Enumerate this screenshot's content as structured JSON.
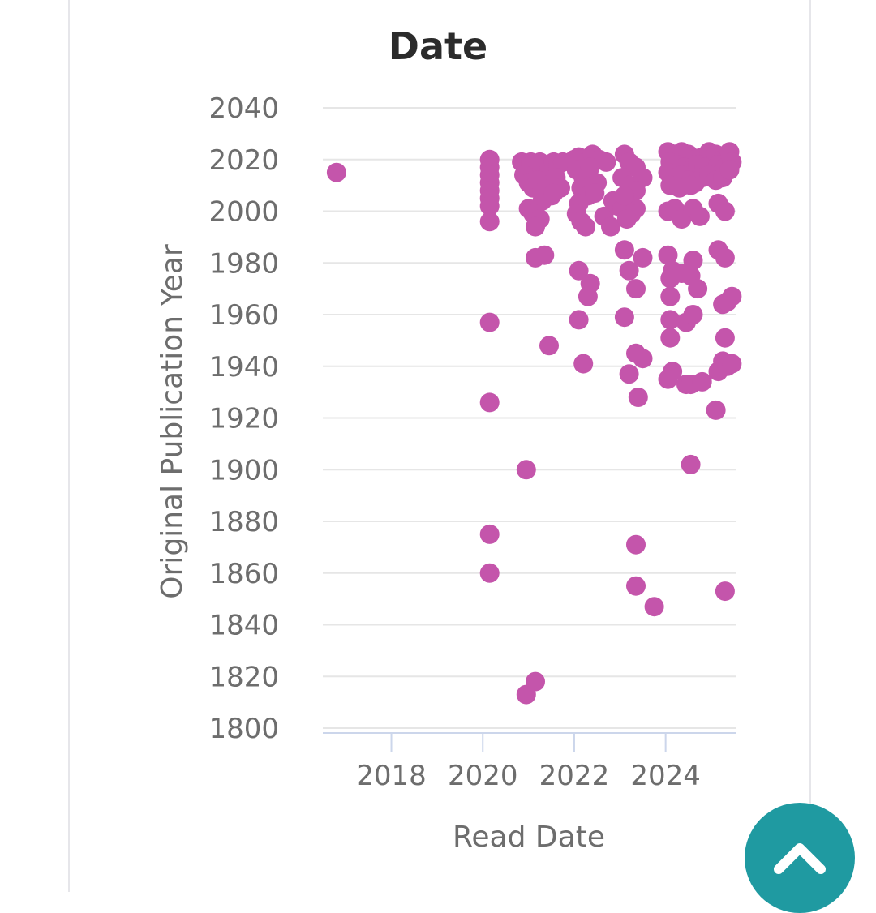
{
  "chart_data": {
    "type": "scatter",
    "title": "Date",
    "xlabel": "Read Date",
    "ylabel": "Original Publication Year",
    "xlim": [
      2016.5,
      2025.55
    ],
    "ylim": [
      1800,
      2040
    ],
    "xticks": [
      "2018",
      "2020",
      "2022",
      "2024"
    ],
    "yticks": [
      "1800",
      "1820",
      "1840",
      "1860",
      "1880",
      "1900",
      "1920",
      "1940",
      "1960",
      "1980",
      "2000",
      "2020",
      "2040"
    ],
    "grid": true,
    "marker_color": "#c455ab",
    "series": [
      {
        "points": [
          [
            2016.8,
            2015
          ],
          [
            2020.15,
            2020
          ],
          [
            2020.15,
            2017
          ],
          [
            2020.15,
            2014
          ],
          [
            2020.15,
            2011
          ],
          [
            2020.15,
            2008
          ],
          [
            2020.15,
            2005
          ],
          [
            2020.15,
            2002
          ],
          [
            2020.15,
            1996
          ],
          [
            2020.15,
            1957
          ],
          [
            2020.15,
            1926
          ],
          [
            2020.15,
            1875
          ],
          [
            2020.15,
            1860
          ],
          [
            2020.85,
            2019
          ],
          [
            2020.95,
            2016
          ],
          [
            2021.05,
            2019
          ],
          [
            2021.15,
            2017
          ],
          [
            2021.25,
            2019
          ],
          [
            2021.35,
            2013
          ],
          [
            2021.45,
            2016
          ],
          [
            2021.55,
            2019
          ],
          [
            2021.65,
            2018
          ],
          [
            2021.75,
            2019
          ],
          [
            2020.9,
            2014
          ],
          [
            2021.0,
            2011
          ],
          [
            2021.1,
            2009
          ],
          [
            2021.2,
            2012
          ],
          [
            2021.3,
            2008
          ],
          [
            2021.4,
            2010
          ],
          [
            2021.5,
            2006
          ],
          [
            2021.6,
            2013
          ],
          [
            2021.7,
            2009
          ],
          [
            2021.3,
            2004
          ],
          [
            2021.55,
            2007
          ],
          [
            2021.0,
            2001
          ],
          [
            2021.1,
            1999
          ],
          [
            2021.25,
            1997
          ],
          [
            2021.15,
            1994
          ],
          [
            2021.15,
            1982
          ],
          [
            2021.35,
            1983
          ],
          [
            2021.45,
            1948
          ],
          [
            2020.95,
            1900
          ],
          [
            2021.15,
            1818
          ],
          [
            2020.95,
            1813
          ],
          [
            2022.0,
            2020
          ],
          [
            2022.1,
            2021
          ],
          [
            2022.25,
            2019
          ],
          [
            2022.4,
            2022
          ],
          [
            2022.55,
            2020
          ],
          [
            2022.7,
            2019
          ],
          [
            2022.05,
            2016
          ],
          [
            2022.2,
            2013
          ],
          [
            2022.35,
            2017
          ],
          [
            2022.5,
            2011
          ],
          [
            2022.15,
            2009
          ],
          [
            2022.3,
            2006
          ],
          [
            2022.45,
            2007
          ],
          [
            2022.1,
            2003
          ],
          [
            2022.05,
            1999
          ],
          [
            2022.15,
            1996
          ],
          [
            2022.25,
            1994
          ],
          [
            2022.1,
            1977
          ],
          [
            2022.35,
            1972
          ],
          [
            2022.3,
            1967
          ],
          [
            2022.1,
            1958
          ],
          [
            2022.2,
            1941
          ],
          [
            2022.65,
            1998
          ],
          [
            2022.8,
            1994
          ],
          [
            2022.85,
            2004
          ],
          [
            2022.95,
            2002
          ],
          [
            2023.05,
            2001
          ],
          [
            2023.2,
            2004
          ],
          [
            2023.35,
            2001
          ],
          [
            2023.1,
            2022
          ],
          [
            2023.2,
            2019
          ],
          [
            2023.35,
            2017
          ],
          [
            2023.5,
            2013
          ],
          [
            2023.05,
            2013
          ],
          [
            2023.2,
            2010
          ],
          [
            2023.35,
            2008
          ],
          [
            2023.1,
            2006
          ],
          [
            2023.25,
            1999
          ],
          [
            2023.15,
            1997
          ],
          [
            2023.1,
            1985
          ],
          [
            2023.2,
            1977
          ],
          [
            2023.35,
            1970
          ],
          [
            2023.5,
            1982
          ],
          [
            2023.1,
            1959
          ],
          [
            2023.35,
            1945
          ],
          [
            2023.5,
            1943
          ],
          [
            2023.2,
            1937
          ],
          [
            2023.4,
            1928
          ],
          [
            2023.35,
            1871
          ],
          [
            2023.35,
            1855
          ],
          [
            2023.75,
            1847
          ],
          [
            2024.05,
            2023
          ],
          [
            2024.2,
            2022
          ],
          [
            2024.35,
            2023
          ],
          [
            2024.5,
            2022
          ],
          [
            2024.65,
            2020
          ],
          [
            2024.8,
            2021
          ],
          [
            2024.95,
            2023
          ],
          [
            2025.1,
            2022
          ],
          [
            2025.25,
            2020
          ],
          [
            2025.4,
            2023
          ],
          [
            2024.1,
            2019
          ],
          [
            2024.25,
            2018
          ],
          [
            2024.4,
            2017
          ],
          [
            2024.55,
            2016
          ],
          [
            2024.7,
            2018
          ],
          [
            2024.85,
            2017
          ],
          [
            2025.0,
            2016
          ],
          [
            2025.15,
            2018
          ],
          [
            2025.3,
            2017
          ],
          [
            2025.45,
            2019
          ],
          [
            2024.05,
            2015
          ],
          [
            2024.2,
            2013
          ],
          [
            2024.35,
            2014
          ],
          [
            2024.5,
            2012
          ],
          [
            2024.65,
            2011
          ],
          [
            2024.8,
            2013
          ],
          [
            2024.95,
            2014
          ],
          [
            2025.1,
            2012
          ],
          [
            2025.25,
            2013
          ],
          [
            2025.4,
            2016
          ],
          [
            2024.1,
            2010
          ],
          [
            2024.3,
            2009
          ],
          [
            2024.55,
            2010
          ],
          [
            2024.05,
            2000
          ],
          [
            2024.2,
            2001
          ],
          [
            2024.35,
            1997
          ],
          [
            2024.6,
            2001
          ],
          [
            2024.75,
            1998
          ],
          [
            2024.05,
            1983
          ],
          [
            2024.15,
            1977
          ],
          [
            2024.1,
            1974
          ],
          [
            2024.35,
            1976
          ],
          [
            2024.55,
            1975
          ],
          [
            2024.6,
            1981
          ],
          [
            2024.7,
            1970
          ],
          [
            2024.1,
            1967
          ],
          [
            2024.1,
            1958
          ],
          [
            2024.45,
            1957
          ],
          [
            2024.6,
            1960
          ],
          [
            2024.1,
            1951
          ],
          [
            2024.15,
            1938
          ],
          [
            2024.05,
            1935
          ],
          [
            2024.45,
            1933
          ],
          [
            2024.55,
            1933
          ],
          [
            2024.8,
            1934
          ],
          [
            2024.55,
            1902
          ],
          [
            2025.15,
            2003
          ],
          [
            2025.3,
            2000
          ],
          [
            2025.15,
            1985
          ],
          [
            2025.3,
            1982
          ],
          [
            2025.25,
            1964
          ],
          [
            2025.35,
            1965
          ],
          [
            2025.45,
            1967
          ],
          [
            2025.3,
            1951
          ],
          [
            2025.25,
            1942
          ],
          [
            2025.15,
            1938
          ],
          [
            2025.35,
            1940
          ],
          [
            2025.45,
            1941
          ],
          [
            2025.1,
            1923
          ],
          [
            2025.3,
            1853
          ]
        ]
      }
    ]
  },
  "nav": {
    "scroll_top_icon": "chevron-up-icon"
  }
}
